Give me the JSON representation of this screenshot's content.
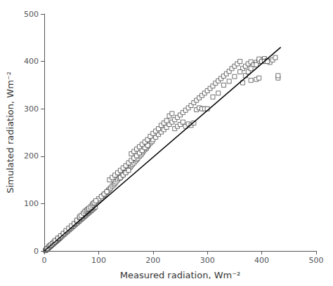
{
  "chart_data": {
    "type": "scatter",
    "xlabel": "Measured radiation, Wm⁻²",
    "ylabel": "Simulated radiation, Wm⁻²",
    "xlim": [
      0,
      500
    ],
    "ylim": [
      0,
      500
    ],
    "xticks": [
      0,
      100,
      200,
      300,
      400,
      500
    ],
    "yticks": [
      0,
      100,
      200,
      300,
      400,
      500
    ],
    "grid": false,
    "series": [
      {
        "type": "scatter",
        "marker": "square",
        "color": "white",
        "values": [
          [
            2,
            1
          ],
          [
            3,
            2
          ],
          [
            4,
            3
          ],
          [
            5,
            4
          ],
          [
            6,
            5
          ],
          [
            7,
            6
          ],
          [
            8,
            7
          ],
          [
            9,
            8
          ],
          [
            10,
            9
          ],
          [
            11,
            10
          ],
          [
            12,
            11
          ],
          [
            13,
            12
          ],
          [
            14,
            13
          ],
          [
            15,
            14
          ],
          [
            16,
            15
          ],
          [
            17,
            16
          ],
          [
            18,
            17
          ],
          [
            19,
            18
          ],
          [
            20,
            19
          ],
          [
            21,
            20
          ],
          [
            22,
            21
          ],
          [
            23,
            22
          ],
          [
            24,
            23
          ],
          [
            25,
            24
          ],
          [
            26,
            25
          ],
          [
            27,
            26
          ],
          [
            28,
            27
          ],
          [
            29,
            28
          ],
          [
            30,
            29
          ],
          [
            32,
            31
          ],
          [
            34,
            33
          ],
          [
            36,
            35
          ],
          [
            38,
            37
          ],
          [
            40,
            39
          ],
          [
            42,
            41
          ],
          [
            44,
            43
          ],
          [
            46,
            45
          ],
          [
            48,
            47
          ],
          [
            50,
            49
          ],
          [
            52,
            51
          ],
          [
            54,
            53
          ],
          [
            56,
            55
          ],
          [
            58,
            57
          ],
          [
            60,
            59
          ],
          [
            62,
            61
          ],
          [
            64,
            63
          ],
          [
            66,
            65
          ],
          [
            68,
            67
          ],
          [
            70,
            69
          ],
          [
            72,
            71
          ],
          [
            74,
            73
          ],
          [
            76,
            75
          ],
          [
            78,
            77
          ],
          [
            80,
            79
          ],
          [
            82,
            81
          ],
          [
            84,
            83
          ],
          [
            86,
            85
          ],
          [
            88,
            87
          ],
          [
            90,
            89
          ],
          [
            92,
            91
          ],
          [
            94,
            93
          ],
          [
            5,
            5
          ],
          [
            8,
            9
          ],
          [
            10,
            11
          ],
          [
            12,
            13
          ],
          [
            15,
            16
          ],
          [
            18,
            19
          ],
          [
            20,
            22
          ],
          [
            25,
            27
          ],
          [
            30,
            32
          ],
          [
            35,
            37
          ],
          [
            40,
            43
          ],
          [
            45,
            48
          ],
          [
            50,
            53
          ],
          [
            55,
            58
          ],
          [
            60,
            63
          ],
          [
            65,
            68
          ],
          [
            70,
            73
          ],
          [
            75,
            78
          ],
          [
            80,
            83
          ],
          [
            60,
            65
          ],
          [
            65,
            70
          ],
          [
            70,
            75
          ],
          [
            72,
            78
          ],
          [
            75,
            80
          ],
          [
            78,
            83
          ],
          [
            80,
            86
          ],
          [
            82,
            88
          ],
          [
            85,
            90
          ],
          [
            88,
            94
          ],
          [
            90,
            96
          ],
          [
            92,
            98
          ],
          [
            95,
            101
          ],
          [
            98,
            104
          ],
          [
            100,
            106
          ],
          [
            102,
            108
          ],
          [
            105,
            112
          ],
          [
            108,
            116
          ],
          [
            110,
            118
          ],
          [
            112,
            120
          ],
          [
            115,
            124
          ],
          [
            118,
            128
          ],
          [
            120,
            130
          ],
          [
            122,
            133
          ],
          [
            125,
            137
          ],
          [
            128,
            140
          ],
          [
            130,
            143
          ],
          [
            132,
            146
          ],
          [
            135,
            150
          ],
          [
            138,
            153
          ],
          [
            140,
            156
          ],
          [
            142,
            158
          ],
          [
            145,
            162
          ],
          [
            148,
            165
          ],
          [
            150,
            168
          ],
          [
            152,
            170
          ],
          [
            155,
            173
          ],
          [
            158,
            177
          ],
          [
            160,
            180
          ],
          [
            162,
            183
          ],
          [
            165,
            186
          ],
          [
            168,
            190
          ],
          [
            170,
            193
          ],
          [
            172,
            196
          ],
          [
            175,
            200
          ],
          [
            178,
            203
          ],
          [
            180,
            207
          ],
          [
            182,
            210
          ],
          [
            185,
            214
          ],
          [
            188,
            217
          ],
          [
            190,
            221
          ],
          [
            192,
            224
          ],
          [
            195,
            228
          ],
          [
            198,
            231
          ],
          [
            200,
            235
          ],
          [
            205,
            240
          ],
          [
            210,
            246
          ],
          [
            215,
            251
          ],
          [
            220,
            256
          ],
          [
            225,
            261
          ],
          [
            230,
            267
          ],
          [
            235,
            272
          ],
          [
            240,
            277
          ],
          [
            245,
            282
          ],
          [
            250,
            287
          ],
          [
            255,
            292
          ],
          [
            260,
            297
          ],
          [
            265,
            302
          ],
          [
            270,
            307
          ],
          [
            275,
            313
          ],
          [
            280,
            318
          ],
          [
            285,
            323
          ],
          [
            290,
            328
          ],
          [
            295,
            333
          ],
          [
            300,
            338
          ],
          [
            305,
            343
          ],
          [
            310,
            348
          ],
          [
            315,
            354
          ],
          [
            320,
            359
          ],
          [
            325,
            364
          ],
          [
            330,
            369
          ],
          [
            335,
            374
          ],
          [
            340,
            379
          ],
          [
            345,
            385
          ],
          [
            350,
            390
          ],
          [
            355,
            395
          ],
          [
            360,
            400
          ],
          [
            365,
            385
          ],
          [
            370,
            390
          ],
          [
            375,
            395
          ],
          [
            380,
            399
          ],
          [
            385,
            393
          ],
          [
            390,
            398
          ],
          [
            395,
            400
          ],
          [
            400,
            403
          ],
          [
            405,
            406
          ],
          [
            410,
            402
          ],
          [
            415,
            398
          ],
          [
            420,
            403
          ],
          [
            425,
            408
          ],
          [
            430,
            365
          ],
          [
            120,
            150
          ],
          [
            125,
            155
          ],
          [
            130,
            160
          ],
          [
            135,
            165
          ],
          [
            140,
            170
          ],
          [
            145,
            175
          ],
          [
            150,
            180
          ],
          [
            155,
            186
          ],
          [
            160,
            191
          ],
          [
            165,
            196
          ],
          [
            170,
            201
          ],
          [
            175,
            207
          ],
          [
            180,
            212
          ],
          [
            185,
            218
          ],
          [
            190,
            223
          ],
          [
            140,
            155
          ],
          [
            145,
            160
          ],
          [
            150,
            165
          ],
          [
            155,
            170
          ],
          [
            160,
            205
          ],
          [
            165,
            210
          ],
          [
            170,
            215
          ],
          [
            175,
            220
          ],
          [
            180,
            225
          ],
          [
            185,
            230
          ],
          [
            190,
            235
          ],
          [
            195,
            242
          ],
          [
            200,
            248
          ],
          [
            205,
            253
          ],
          [
            210,
            258
          ],
          [
            215,
            265
          ],
          [
            220,
            270
          ],
          [
            225,
            275
          ],
          [
            230,
            285
          ],
          [
            235,
            290
          ],
          [
            240,
            258
          ],
          [
            245,
            263
          ],
          [
            250,
            267
          ],
          [
            255,
            272
          ],
          [
            260,
            263
          ],
          [
            265,
            268
          ],
          [
            270,
            265
          ],
          [
            275,
            270
          ],
          [
            280,
            298
          ],
          [
            285,
            302
          ],
          [
            290,
            300
          ],
          [
            295,
            300
          ],
          [
            300,
            300
          ],
          [
            310,
            325
          ],
          [
            320,
            333
          ],
          [
            330,
            350
          ],
          [
            340,
            358
          ],
          [
            350,
            368
          ],
          [
            360,
            378
          ],
          [
            365,
            355
          ],
          [
            370,
            370
          ],
          [
            375,
            378
          ],
          [
            380,
            385
          ],
          [
            390,
            393
          ],
          [
            395,
            405
          ],
          [
            400,
            400
          ],
          [
            405,
            400
          ],
          [
            410,
            400
          ],
          [
            380,
            360
          ],
          [
            390,
            362
          ],
          [
            395,
            365
          ],
          [
            430,
            370
          ],
          [
            100,
            110
          ],
          [
            105,
            115
          ],
          [
            110,
            120
          ],
          [
            115,
            125
          ],
          [
            65,
            72
          ],
          [
            68,
            75
          ],
          [
            72,
            80
          ],
          [
            75,
            84
          ],
          [
            78,
            86
          ],
          [
            80,
            88
          ],
          [
            82,
            90
          ],
          [
            85,
            93
          ],
          [
            88,
            97
          ],
          [
            90,
            100
          ],
          [
            92,
            102
          ],
          [
            95,
            106
          ]
        ]
      },
      {
        "type": "line",
        "color": "black",
        "x": [
          0,
          435
        ],
        "values": [
          0,
          430
        ]
      }
    ]
  }
}
